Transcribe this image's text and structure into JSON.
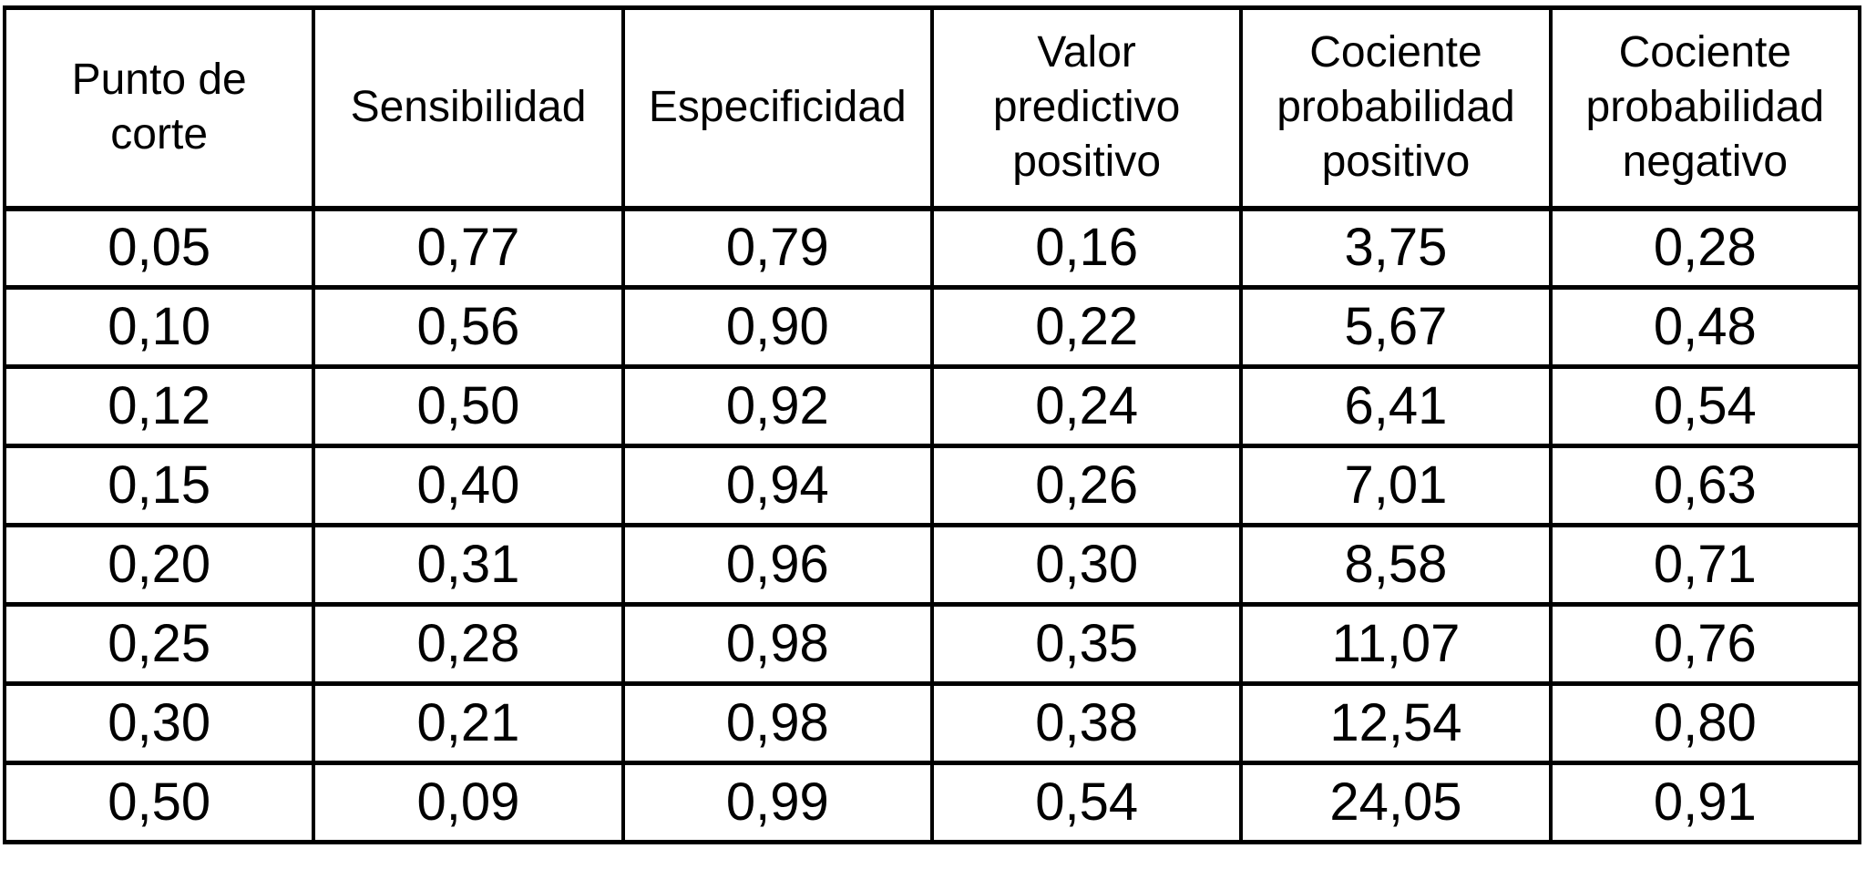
{
  "table": {
    "columns": [
      {
        "label": "Punto de\ncorte"
      },
      {
        "label": "Sensibilidad"
      },
      {
        "label": "Especificidad"
      },
      {
        "label": "Valor\npredictivo\npositivo"
      },
      {
        "label": "Cociente\nprobabilidad\npositivo"
      },
      {
        "label": "Cociente\nprobabilidad\nnegativo"
      }
    ],
    "rows": [
      [
        "0,05",
        "0,77",
        "0,79",
        "0,16",
        "3,75",
        "0,28"
      ],
      [
        "0,10",
        "0,56",
        "0,90",
        "0,22",
        "5,67",
        "0,48"
      ],
      [
        "0,12",
        "0,50",
        "0,92",
        "0,24",
        "6,41",
        "0,54"
      ],
      [
        "0,15",
        "0,40",
        "0,94",
        "0,26",
        "7,01",
        "0,63"
      ],
      [
        "0,20",
        "0,31",
        "0,96",
        "0,30",
        "8,58",
        "0,71"
      ],
      [
        "0,25",
        "0,28",
        "0,98",
        "0,35",
        "11,07",
        "0,76"
      ],
      [
        "0,30",
        "0,21",
        "0,98",
        "0,38",
        "12,54",
        "0,80"
      ],
      [
        "0,50",
        "0,09",
        "0,99",
        "0,54",
        "24,05",
        "0,91"
      ]
    ],
    "colors": {
      "border": "#000000",
      "background": "#ffffff",
      "text": "#000000"
    }
  },
  "chart_data": {
    "type": "table",
    "title": "",
    "columns": [
      "Punto de corte",
      "Sensibilidad",
      "Especificidad",
      "Valor predictivo positivo",
      "Cociente probabilidad positivo",
      "Cociente probabilidad negativo"
    ],
    "rows": [
      [
        "0,05",
        "0,77",
        "0,79",
        "0,16",
        "3,75",
        "0,28"
      ],
      [
        "0,10",
        "0,56",
        "0,90",
        "0,22",
        "5,67",
        "0,48"
      ],
      [
        "0,12",
        "0,50",
        "0,92",
        "0,24",
        "6,41",
        "0,54"
      ],
      [
        "0,15",
        "0,40",
        "0,94",
        "0,26",
        "7,01",
        "0,63"
      ],
      [
        "0,20",
        "0,31",
        "0,96",
        "0,30",
        "8,58",
        "0,71"
      ],
      [
        "0,25",
        "0,28",
        "0,98",
        "0,35",
        "11,07",
        "0,76"
      ],
      [
        "0,30",
        "0,21",
        "0,98",
        "0,38",
        "12,54",
        "0,80"
      ],
      [
        "0,50",
        "0,09",
        "0,99",
        "0,54",
        "24,05",
        "0,91"
      ]
    ],
    "decimal_separator": ","
  }
}
